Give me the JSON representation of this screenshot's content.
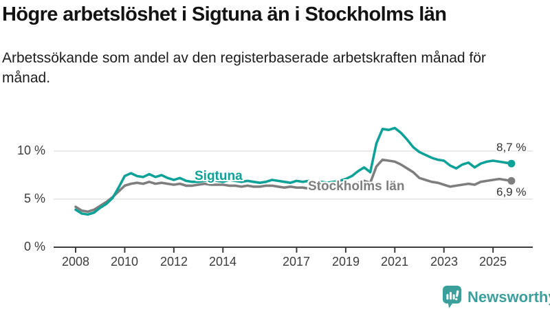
{
  "header": {
    "title": "Högre arbetslöshet i Sigtuna än i Stockholms län",
    "subtitle": "Arbetssökande som andel av den registerbaserade arbetskraften månad för månad."
  },
  "chart_data": {
    "type": "line",
    "title": "Högre arbetslöshet i Sigtuna än i Stockholms län",
    "ylabel": "",
    "xlabel": "",
    "grid": "horizontal",
    "legend": "inline-labels",
    "xlim": [
      2007.8,
      2026.4
    ],
    "ylim": [
      0,
      13.5
    ],
    "x": [
      2008,
      2008.25,
      2008.5,
      2008.75,
      2009,
      2009.25,
      2009.5,
      2009.75,
      2010,
      2010.25,
      2010.5,
      2010.75,
      2011,
      2011.25,
      2011.5,
      2011.75,
      2012,
      2012.25,
      2012.5,
      2012.75,
      2013,
      2013.25,
      2013.5,
      2013.75,
      2014,
      2014.25,
      2014.5,
      2014.75,
      2015,
      2015.25,
      2015.5,
      2015.75,
      2016,
      2016.25,
      2016.5,
      2016.75,
      2017,
      2017.25,
      2017.5,
      2017.75,
      2018,
      2018.25,
      2018.5,
      2018.75,
      2019,
      2019.25,
      2019.5,
      2019.75,
      2020,
      2020.25,
      2020.5,
      2020.75,
      2021,
      2021.25,
      2021.5,
      2021.75,
      2022,
      2022.25,
      2022.5,
      2022.75,
      2023,
      2023.25,
      2023.5,
      2023.75,
      2024,
      2024.25,
      2024.5,
      2024.75,
      2025,
      2025.25,
      2025.5,
      2025.75
    ],
    "series": [
      {
        "name": "Sigtuna",
        "color": "#0ea197",
        "end_label": "8,7 %",
        "values": [
          3.9,
          3.5,
          3.4,
          3.6,
          4.1,
          4.5,
          5.1,
          6.2,
          7.4,
          7.7,
          7.4,
          7.3,
          7.6,
          7.3,
          7.5,
          7.2,
          7.0,
          7.2,
          6.9,
          6.8,
          6.8,
          6.9,
          7.0,
          6.9,
          6.8,
          7.0,
          6.9,
          6.8,
          6.9,
          6.8,
          6.7,
          6.8,
          7.0,
          6.9,
          6.8,
          6.7,
          6.9,
          6.8,
          6.9,
          6.8,
          6.8,
          6.7,
          6.8,
          6.9,
          7.1,
          7.4,
          7.9,
          8.3,
          7.8,
          10.8,
          12.3,
          12.2,
          12.4,
          11.9,
          11.2,
          10.4,
          9.9,
          9.6,
          9.3,
          9.1,
          9.0,
          8.5,
          8.2,
          8.6,
          8.8,
          8.3,
          8.7,
          8.9,
          9.0,
          8.9,
          8.8,
          8.7
        ]
      },
      {
        "name": "Stockholms län",
        "color": "#7e7e7e",
        "end_label": "6,9 %",
        "values": [
          4.2,
          3.8,
          3.7,
          3.9,
          4.3,
          4.7,
          5.2,
          5.8,
          6.4,
          6.6,
          6.7,
          6.6,
          6.8,
          6.6,
          6.7,
          6.6,
          6.5,
          6.6,
          6.4,
          6.4,
          6.5,
          6.6,
          6.5,
          6.5,
          6.5,
          6.4,
          6.4,
          6.3,
          6.4,
          6.3,
          6.3,
          6.4,
          6.4,
          6.3,
          6.2,
          6.3,
          6.2,
          6.2,
          6.1,
          6.2,
          6.1,
          6.1,
          6.2,
          6.2,
          6.3,
          6.5,
          6.7,
          6.9,
          6.7,
          8.4,
          9.1,
          9.0,
          8.9,
          8.6,
          8.2,
          7.8,
          7.2,
          7.0,
          6.8,
          6.7,
          6.5,
          6.3,
          6.4,
          6.5,
          6.6,
          6.5,
          6.8,
          6.9,
          7.0,
          7.1,
          7.0,
          6.9
        ]
      }
    ],
    "yticks": [
      {
        "value": 0,
        "label": "0 %"
      },
      {
        "value": 5,
        "label": "5 %"
      },
      {
        "value": 10,
        "label": "10 %"
      }
    ],
    "xticks": [
      {
        "value": 2008,
        "label": "2008"
      },
      {
        "value": 2010,
        "label": "2010"
      },
      {
        "value": 2012,
        "label": "2012"
      },
      {
        "value": 2014,
        "label": "2014"
      },
      {
        "value": 2017,
        "label": "2017"
      },
      {
        "value": 2019,
        "label": "2019"
      },
      {
        "value": 2021,
        "label": "2021"
      },
      {
        "value": 2023,
        "label": "2023"
      },
      {
        "value": 2025,
        "label": "2025"
      }
    ],
    "colors": {
      "grid": "#dcdcdc",
      "axis": "#3c3c3c",
      "sigtuna": "#0ea197",
      "stockholm": "#7e7e7e"
    }
  },
  "annotations": {
    "sigtuna_label": "Sigtuna",
    "stockholm_label": "Stockholms län",
    "sigtuna_end_value": "8,7 %",
    "stockholm_end_value": "6,9 %"
  },
  "footer": {
    "brand": "Newsworthy",
    "brand_color": "#3b9f9c"
  }
}
